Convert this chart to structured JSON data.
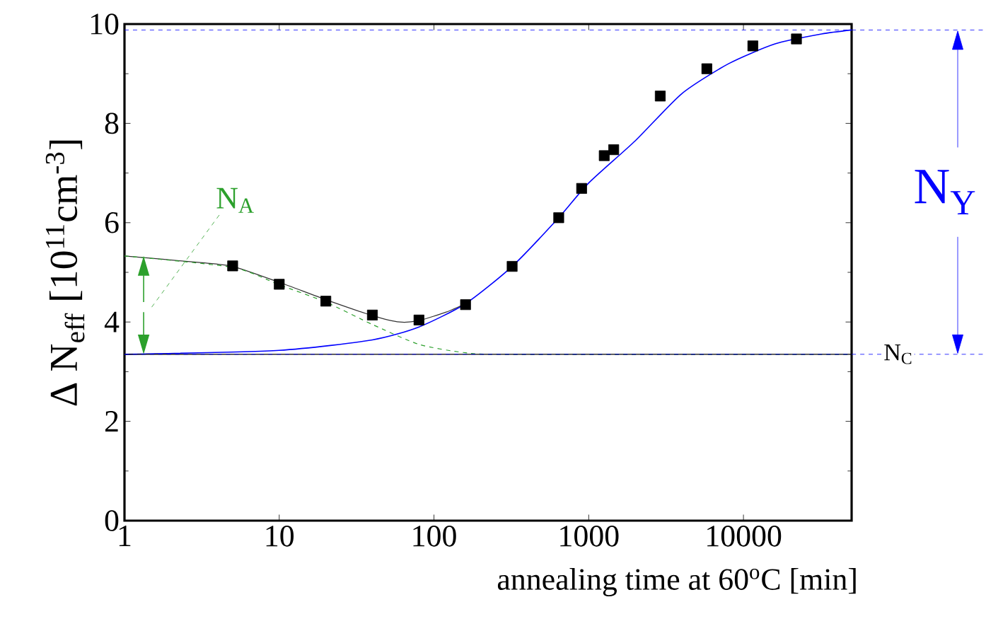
{
  "chart_data": {
    "type": "scatter",
    "xlabel": "annealing time at 60$^{o}$C [min]",
    "ylabel": "Δ N$_{eff}$ [10$^{11}$cm$^{-3}$]",
    "log": "x",
    "xlim": [
      1,
      50000
    ],
    "xticks": [
      1,
      10,
      100,
      1000,
      10000
    ],
    "ylim": [
      0,
      10
    ],
    "yticks": [
      0,
      2,
      4,
      6,
      8,
      10
    ],
    "series": [
      {
        "type": "line",
        "color": "#0000ff",
        "line_style": "solid",
        "marker": "none",
        "x": [
          1,
          10,
          40,
          80,
          160,
          320,
          640,
          1000,
          2000,
          4000,
          8000,
          16000,
          32000,
          50000
        ],
        "values": [
          3.35,
          3.43,
          3.64,
          3.9,
          4.37,
          5.12,
          6.1,
          6.8,
          7.65,
          8.6,
          9.2,
          9.6,
          9.8,
          9.88
        ]
      },
      {
        "type": "line",
        "color": "#333333",
        "line_style": "solid",
        "marker": "none",
        "x": [
          1,
          3,
          5,
          10,
          20,
          40,
          60,
          80,
          120,
          160
        ],
        "values": [
          5.33,
          5.2,
          5.12,
          4.8,
          4.45,
          4.13,
          4.0,
          4.03,
          4.2,
          4.37
        ]
      },
      {
        "type": "line",
        "name": "N$_{A}$",
        "color": "#2ca02c",
        "line_style": "dashed",
        "marker": "none",
        "x": [
          1,
          5,
          10,
          20,
          40,
          80,
          160,
          320,
          50000
        ],
        "values": [
          5.33,
          5.1,
          4.75,
          4.4,
          3.95,
          3.55,
          3.38,
          3.35,
          3.35
        ]
      },
      {
        "type": "line",
        "color": "#000000",
        "line_style": "solid",
        "marker": "none",
        "x": [
          1,
          50000
        ],
        "values": [
          3.35,
          3.35
        ]
      },
      {
        "color": "#000000",
        "marker": "square",
        "x": [
          5,
          10,
          20,
          40,
          80,
          160,
          320,
          640,
          900,
          1260,
          1450,
          2900,
          5800,
          11500,
          22000
        ],
        "values": [
          5.13,
          4.76,
          4.42,
          4.14,
          4.04,
          4.35,
          5.12,
          6.1,
          6.69,
          7.35,
          7.47,
          8.55,
          9.1,
          9.56,
          9.7
        ]
      }
    ],
    "ref_lines": [
      {
        "axis": "y",
        "value": 3.35,
        "label": "N$_{C}$",
        "color": "#0000ff",
        "line_style": "dashed"
      },
      {
        "axis": "y",
        "value": 9.88,
        "color": "#0000ff",
        "line_style": "dashed"
      }
    ],
    "annotations": [
      "N$_{Y}$"
    ]
  }
}
